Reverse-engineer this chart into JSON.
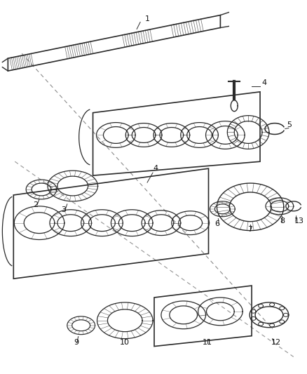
{
  "background_color": "#ffffff",
  "line_color": "#2a2a2a",
  "label_color": "#111111",
  "figsize": [
    4.38,
    5.33
  ],
  "dpi": 100
}
